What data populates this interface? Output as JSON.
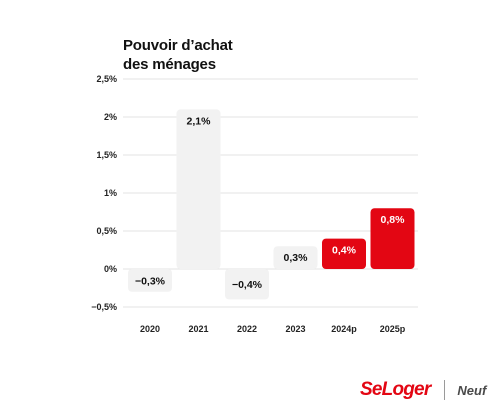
{
  "chart_data": {
    "type": "bar",
    "title": "Pouvoir d’achat\ndes ménages",
    "categories": [
      "2020",
      "2021",
      "2022",
      "2023",
      "2024p",
      "2025p"
    ],
    "values": [
      -0.3,
      2.1,
      -0.4,
      0.3,
      0.4,
      0.8
    ],
    "value_labels": [
      "−0,3%",
      "2,1%",
      "−0,4%",
      "0,3%",
      "0,4%",
      "0,8%"
    ],
    "yticks": [
      2.5,
      2,
      1.5,
      1,
      0.5,
      0,
      -0.5
    ],
    "ytick_labels": [
      "2,5%",
      "2%",
      "1,5%",
      "1%",
      "0,5%",
      "0%",
      "−0,5%"
    ],
    "ylim": [
      -0.5,
      2.5
    ],
    "grid": true,
    "xlabel": "",
    "ylabel": "",
    "colors": {
      "historical": "#f2f2f2",
      "forecast": "#e30613",
      "grid": "#e3e3e3",
      "text_dark": "#111111",
      "text_light": "#ffffff"
    },
    "forecast_categories": [
      "2024p",
      "2025p"
    ]
  },
  "logo": {
    "brand": "SeLoger",
    "sub": "Neuf"
  }
}
